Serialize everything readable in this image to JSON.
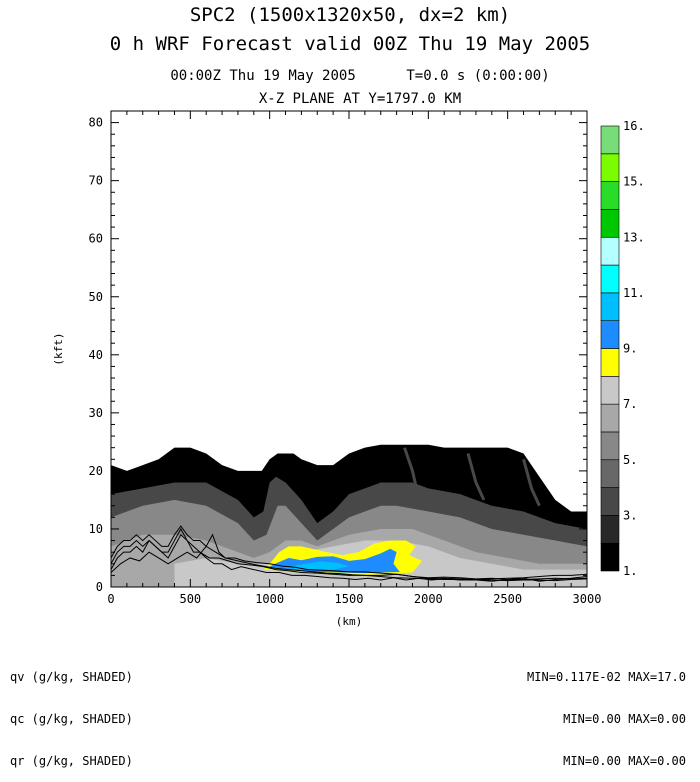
{
  "header": {
    "title_line1": "SPC2 (1500x1320x50, dx=2 km)",
    "title_line2": "0 h WRF Forecast valid 00Z Thu 19 May 2005",
    "subtitle_time": "00:00Z Thu 19 May 2005      T=0.0 s (0:00:00)",
    "subtitle_plane": "X-Z PLANE AT Y=1797.0 KM"
  },
  "chart_data": {
    "type": "heatmap",
    "xlabel": "(km)",
    "ylabel": "(kft)",
    "xlim": [
      0,
      3000
    ],
    "ylim": [
      0,
      82
    ],
    "x_ticks": [
      0,
      500,
      1000,
      1500,
      2000,
      2500,
      3000
    ],
    "y_ticks": [
      0,
      10,
      20,
      30,
      40,
      50,
      60,
      70,
      80
    ],
    "grid": false,
    "colorbar": {
      "labels": [
        "1.",
        "3.",
        "5.",
        "7.",
        "9.",
        "11.",
        "13.",
        "15.",
        "16."
      ],
      "colors": [
        "#000000",
        "#282828",
        "#484848",
        "#686868",
        "#888888",
        "#a8a8a8",
        "#c8c8c8",
        "#ffff00",
        "#1e8cff",
        "#00bfff",
        "#00ffff",
        "#b4ffff",
        "#00c800",
        "#28dc28",
        "#7cfc00",
        "#78dc78"
      ]
    },
    "shaded_levels": {
      "black_top_kft": [
        [
          0,
          21
        ],
        [
          100,
          20
        ],
        [
          200,
          21
        ],
        [
          300,
          22
        ],
        [
          400,
          24
        ],
        [
          500,
          24
        ],
        [
          600,
          23
        ],
        [
          700,
          21
        ],
        [
          800,
          20
        ],
        [
          900,
          20
        ],
        [
          950,
          20
        ],
        [
          1000,
          22
        ],
        [
          1050,
          23
        ],
        [
          1150,
          23
        ],
        [
          1200,
          22
        ],
        [
          1300,
          21
        ],
        [
          1400,
          21
        ],
        [
          1500,
          23
        ],
        [
          1600,
          24
        ],
        [
          1700,
          24.5
        ],
        [
          1800,
          24.5
        ],
        [
          1900,
          24.5
        ],
        [
          2000,
          24.5
        ],
        [
          2100,
          24
        ],
        [
          2200,
          24
        ],
        [
          2300,
          24
        ],
        [
          2400,
          24
        ],
        [
          2500,
          24
        ],
        [
          2600,
          23
        ],
        [
          2700,
          19
        ],
        [
          2800,
          15
        ],
        [
          2900,
          13
        ],
        [
          3000,
          13
        ]
      ],
      "dark1_top_kft": [
        [
          0,
          16
        ],
        [
          200,
          17
        ],
        [
          400,
          18
        ],
        [
          600,
          18
        ],
        [
          800,
          15
        ],
        [
          900,
          12
        ],
        [
          960,
          13
        ],
        [
          1000,
          18
        ],
        [
          1040,
          19
        ],
        [
          1100,
          18
        ],
        [
          1200,
          15
        ],
        [
          1300,
          11
        ],
        [
          1400,
          13
        ],
        [
          1500,
          16
        ],
        [
          1600,
          17
        ],
        [
          1700,
          18
        ],
        [
          1800,
          18
        ],
        [
          1900,
          18
        ],
        [
          2000,
          17
        ],
        [
          2200,
          16
        ],
        [
          2400,
          14
        ],
        [
          2600,
          13
        ],
        [
          2800,
          11
        ],
        [
          3000,
          10
        ]
      ],
      "mid_top_kft": [
        [
          0,
          12
        ],
        [
          200,
          14
        ],
        [
          400,
          15
        ],
        [
          600,
          14
        ],
        [
          800,
          11
        ],
        [
          900,
          8
        ],
        [
          980,
          9
        ],
        [
          1050,
          14
        ],
        [
          1100,
          14
        ],
        [
          1200,
          11
        ],
        [
          1300,
          8
        ],
        [
          1400,
          10
        ],
        [
          1500,
          12
        ],
        [
          1600,
          13
        ],
        [
          1700,
          14
        ],
        [
          1800,
          14
        ],
        [
          2000,
          13
        ],
        [
          2200,
          12
        ],
        [
          2400,
          10
        ],
        [
          2600,
          9
        ],
        [
          2800,
          8
        ],
        [
          3000,
          7
        ]
      ],
      "light_top_kft": [
        [
          0,
          7
        ],
        [
          200,
          9
        ],
        [
          400,
          9
        ],
        [
          600,
          8
        ],
        [
          800,
          6
        ],
        [
          900,
          5
        ],
        [
          1000,
          6
        ],
        [
          1100,
          8
        ],
        [
          1200,
          8
        ],
        [
          1300,
          7
        ],
        [
          1400,
          8
        ],
        [
          1500,
          9
        ],
        [
          1700,
          10
        ],
        [
          1900,
          10
        ],
        [
          2100,
          8
        ],
        [
          2300,
          6
        ],
        [
          2500,
          5
        ],
        [
          2700,
          4
        ],
        [
          3000,
          4
        ]
      ],
      "lightest_top_kft": [
        [
          400,
          4
        ],
        [
          600,
          5
        ],
        [
          800,
          4
        ],
        [
          1000,
          4
        ],
        [
          1100,
          5
        ],
        [
          1200,
          6
        ],
        [
          1400,
          7
        ],
        [
          1600,
          8
        ],
        [
          1800,
          8
        ],
        [
          2000,
          7
        ],
        [
          2200,
          5
        ],
        [
          2400,
          4
        ],
        [
          2600,
          3
        ],
        [
          2800,
          3
        ],
        [
          3000,
          3
        ]
      ],
      "yellow_outline": [
        [
          960,
          3
        ],
        [
          1000,
          4
        ],
        [
          1060,
          6
        ],
        [
          1120,
          7
        ],
        [
          1200,
          7
        ],
        [
          1280,
          6.5
        ],
        [
          1360,
          6
        ],
        [
          1460,
          5.5
        ],
        [
          1560,
          6
        ],
        [
          1660,
          7.5
        ],
        [
          1760,
          8
        ],
        [
          1860,
          8
        ],
        [
          1920,
          7
        ],
        [
          1880,
          5.5
        ],
        [
          1960,
          4.5
        ],
        [
          1900,
          2.5
        ],
        [
          1600,
          2
        ],
        [
          1300,
          2.5
        ],
        [
          1100,
          2.8
        ]
      ],
      "blue_outline": [
        [
          1000,
          3.5
        ],
        [
          1050,
          4.2
        ],
        [
          1120,
          5
        ],
        [
          1200,
          4.6
        ],
        [
          1300,
          5.2
        ],
        [
          1400,
          5.3
        ],
        [
          1500,
          4.5
        ],
        [
          1600,
          4.8
        ],
        [
          1700,
          5.8
        ],
        [
          1760,
          6.6
        ],
        [
          1800,
          6
        ],
        [
          1780,
          4
        ],
        [
          1820,
          2.6
        ],
        [
          1600,
          2.4
        ],
        [
          1300,
          2.6
        ],
        [
          1100,
          3
        ]
      ],
      "cyan_outline": [
        [
          1080,
          3.3
        ],
        [
          1200,
          3.9
        ],
        [
          1320,
          4.4
        ],
        [
          1420,
          4.2
        ],
        [
          1500,
          3.6
        ],
        [
          1400,
          3
        ],
        [
          1250,
          2.9
        ]
      ]
    },
    "terrain_lines_kft": [
      [
        [
          0,
          3
        ],
        [
          40,
          5
        ],
        [
          80,
          6
        ],
        [
          120,
          6
        ],
        [
          160,
          7
        ],
        [
          200,
          6
        ],
        [
          240,
          8
        ],
        [
          280,
          7
        ],
        [
          320,
          6
        ],
        [
          360,
          5
        ],
        [
          400,
          7
        ],
        [
          440,
          9
        ],
        [
          480,
          8
        ],
        [
          520,
          7
        ],
        [
          560,
          6
        ],
        [
          600,
          5
        ],
        [
          650,
          4
        ],
        [
          700,
          4
        ],
        [
          760,
          3
        ],
        [
          820,
          3.5
        ],
        [
          900,
          3
        ],
        [
          980,
          2.5
        ],
        [
          1060,
          2.5
        ],
        [
          1140,
          2
        ],
        [
          1220,
          2
        ],
        [
          1300,
          1.8
        ],
        [
          1380,
          1.6
        ],
        [
          1460,
          1.5
        ],
        [
          1540,
          1.3
        ],
        [
          1620,
          1.5
        ],
        [
          1700,
          1.2
        ],
        [
          1780,
          1.6
        ],
        [
          1860,
          1.2
        ],
        [
          1940,
          1.5
        ],
        [
          2020,
          1.2
        ],
        [
          2100,
          1.4
        ],
        [
          2200,
          1.2
        ],
        [
          2300,
          1.2
        ],
        [
          2400,
          1
        ],
        [
          2500,
          1.3
        ],
        [
          2600,
          1.5
        ],
        [
          2700,
          1
        ],
        [
          2800,
          1.3
        ],
        [
          2900,
          1.5
        ],
        [
          3000,
          1.8
        ]
      ],
      [
        [
          0,
          4
        ],
        [
          40,
          6
        ],
        [
          80,
          7
        ],
        [
          120,
          7
        ],
        [
          160,
          8
        ],
        [
          200,
          7
        ],
        [
          240,
          8
        ],
        [
          280,
          7
        ],
        [
          320,
          6
        ],
        [
          360,
          6
        ],
        [
          400,
          8
        ],
        [
          440,
          10
        ],
        [
          480,
          8
        ],
        [
          520,
          6
        ],
        [
          560,
          6
        ],
        [
          620,
          5
        ],
        [
          680,
          5
        ],
        [
          740,
          4.5
        ],
        [
          800,
          4
        ],
        [
          880,
          3.8
        ],
        [
          960,
          3.5
        ],
        [
          1040,
          3
        ],
        [
          1120,
          2.8
        ],
        [
          1200,
          2.5
        ],
        [
          1300,
          2.4
        ],
        [
          1400,
          2.2
        ],
        [
          1500,
          2
        ],
        [
          1600,
          2
        ],
        [
          1700,
          2
        ],
        [
          1800,
          2.2
        ],
        [
          1900,
          1.8
        ],
        [
          2000,
          1.5
        ],
        [
          2100,
          1.5
        ],
        [
          2200,
          1.4
        ],
        [
          2300,
          1.3
        ],
        [
          2400,
          1.4
        ],
        [
          2500,
          1.5
        ],
        [
          2600,
          1.6
        ],
        [
          2700,
          1.8
        ],
        [
          2800,
          2
        ],
        [
          2900,
          2
        ],
        [
          3000,
          2.2
        ]
      ],
      [
        [
          0,
          5
        ],
        [
          40,
          7
        ],
        [
          80,
          8
        ],
        [
          120,
          8
        ],
        [
          160,
          9
        ],
        [
          200,
          8
        ],
        [
          240,
          9
        ],
        [
          280,
          8
        ],
        [
          320,
          7
        ],
        [
          360,
          7
        ],
        [
          400,
          9
        ],
        [
          440,
          10.5
        ],
        [
          480,
          9
        ],
        [
          520,
          8
        ],
        [
          560,
          8
        ],
        [
          600,
          7
        ],
        [
          660,
          6
        ],
        [
          720,
          5
        ],
        [
          780,
          5
        ],
        [
          840,
          4.5
        ],
        [
          920,
          4.2
        ],
        [
          1000,
          4
        ],
        [
          1080,
          3.6
        ],
        [
          1160,
          3.4
        ],
        [
          1240,
          3
        ],
        [
          1320,
          2.9
        ],
        [
          1400,
          2.8
        ],
        [
          1500,
          2.6
        ],
        [
          1600,
          2.6
        ],
        [
          1700,
          2.4
        ],
        [
          1800,
          2.2
        ],
        [
          1900,
          1.8
        ],
        [
          2000,
          1.6
        ],
        [
          2100,
          1.7
        ],
        [
          2200,
          1.6
        ],
        [
          2300,
          1.4
        ],
        [
          2400,
          1.5
        ],
        [
          2500,
          1.3
        ],
        [
          2600,
          1.3
        ],
        [
          2700,
          1.4
        ],
        [
          2800,
          1.5
        ],
        [
          2900,
          1.4
        ],
        [
          3000,
          1.5
        ]
      ],
      [
        [
          0,
          2.5
        ],
        [
          60,
          4
        ],
        [
          120,
          5
        ],
        [
          180,
          4.5
        ],
        [
          240,
          6
        ],
        [
          300,
          5
        ],
        [
          360,
          4
        ],
        [
          420,
          5
        ],
        [
          480,
          6
        ],
        [
          540,
          5
        ],
        [
          600,
          7
        ],
        [
          640,
          9
        ],
        [
          680,
          6
        ],
        [
          720,
          5
        ],
        [
          800,
          4.5
        ],
        [
          880,
          4
        ],
        [
          960,
          3.6
        ],
        [
          1040,
          3.2
        ],
        [
          1120,
          3
        ],
        [
          1200,
          2.8
        ],
        [
          1280,
          2.6
        ],
        [
          1360,
          2.4
        ],
        [
          1440,
          2.3
        ],
        [
          1520,
          2.1
        ],
        [
          1600,
          2
        ],
        [
          1700,
          1.8
        ],
        [
          1800,
          1.6
        ],
        [
          1900,
          1.5
        ],
        [
          2000,
          1.4
        ],
        [
          2100,
          1.3
        ],
        [
          2200,
          1.3
        ],
        [
          2300,
          1.2
        ],
        [
          2400,
          1.2
        ],
        [
          2500,
          1.1
        ],
        [
          2600,
          1.2
        ],
        [
          2700,
          1.2
        ],
        [
          2800,
          1.1
        ],
        [
          2900,
          1.3
        ],
        [
          3000,
          1.4
        ]
      ]
    ]
  },
  "footer": {
    "field_qv": "qv (g/kg, SHADED)",
    "field_qc": "qc (g/kg, SHADED)",
    "field_qr": "qr (g/kg, SHADED)",
    "stats_qv": "MIN=0.117E-02 MAX=17.0",
    "stats_qc": "MIN=0.00 MAX=0.00",
    "stats_qr": "MIN=0.00 MAX=0.00"
  }
}
